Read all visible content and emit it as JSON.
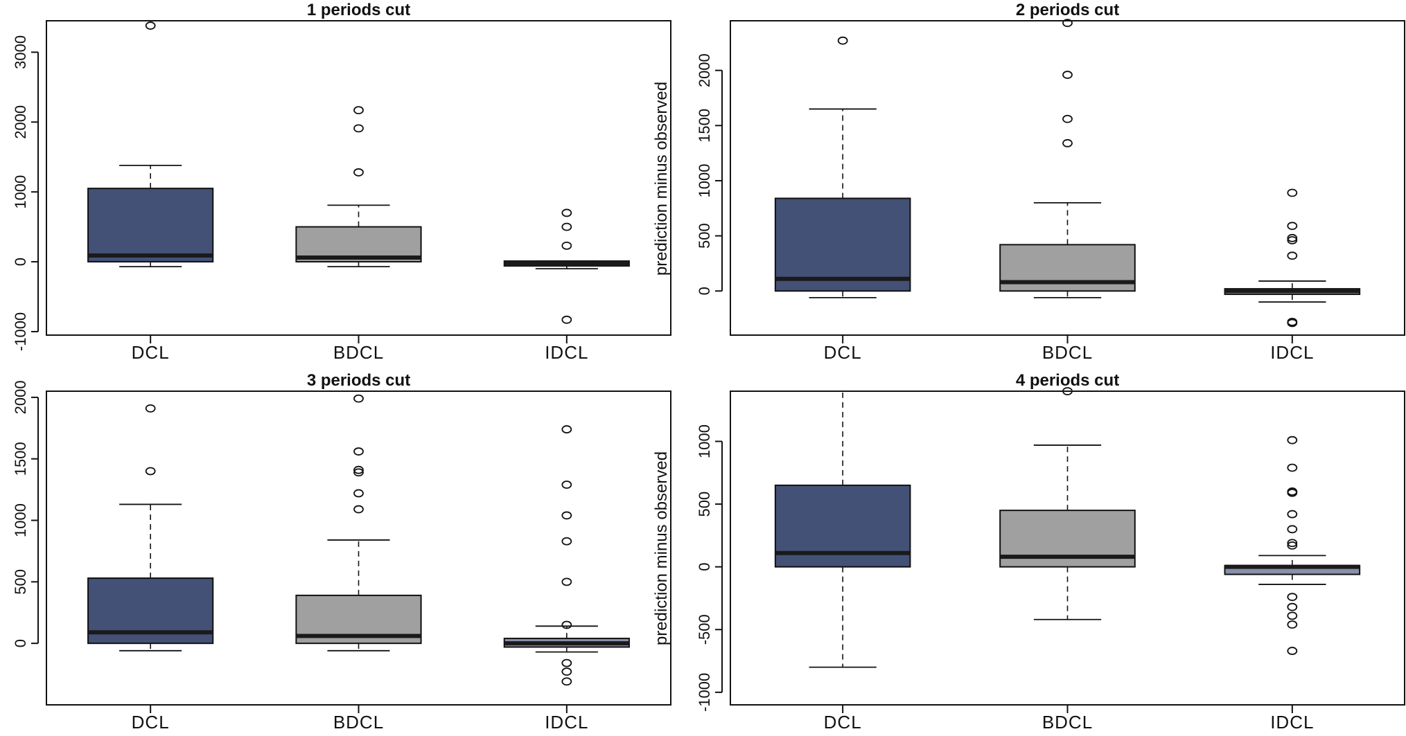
{
  "chart_data": [
    {
      "type": "box",
      "title": "1 periods cut",
      "ylabel": "",
      "categories": [
        "DCL",
        "BDCL",
        "IDCL"
      ],
      "ylim": [
        -1050,
        3450
      ],
      "yticks": [
        -1000,
        0,
        1000,
        2000,
        3000
      ],
      "ytick_labels": [
        "-1000",
        "0",
        "1000",
        "2000",
        "3000"
      ],
      "boxes": [
        {
          "name": "DCL",
          "color": "#435176",
          "whisker_low": -70,
          "q1": 0,
          "median": 90,
          "q3": 1050,
          "whisker_high": 1380,
          "outliers": [
            3380
          ]
        },
        {
          "name": "BDCL",
          "color": "#a0a0a0",
          "whisker_low": -70,
          "q1": 0,
          "median": 60,
          "q3": 500,
          "whisker_high": 810,
          "outliers": [
            1280,
            1910,
            2170
          ]
        },
        {
          "name": "IDCL",
          "color": "#8890aa",
          "whisker_low": -100,
          "q1": -60,
          "median": -20,
          "q3": 10,
          "whisker_high": 10,
          "outliers": [
            -830,
            230,
            500,
            700
          ]
        }
      ]
    },
    {
      "type": "box",
      "title": "2 periods cut",
      "ylabel": "prediction minus observed",
      "categories": [
        "DCL",
        "BDCL",
        "IDCL"
      ],
      "ylim": [
        -400,
        2450
      ],
      "yticks": [
        0,
        500,
        1000,
        1500,
        2000
      ],
      "ytick_labels": [
        "0",
        "500",
        "1000",
        "1500",
        "2000"
      ],
      "boxes": [
        {
          "name": "DCL",
          "color": "#435176",
          "whisker_low": -60,
          "q1": 0,
          "median": 110,
          "q3": 840,
          "whisker_high": 1650,
          "outliers": [
            2270
          ]
        },
        {
          "name": "BDCL",
          "color": "#a0a0a0",
          "whisker_low": -60,
          "q1": 0,
          "median": 80,
          "q3": 420,
          "whisker_high": 800,
          "outliers": [
            1340,
            1560,
            1960,
            2430
          ]
        },
        {
          "name": "IDCL",
          "color": "#8890aa",
          "whisker_low": -100,
          "q1": -30,
          "median": 0,
          "q3": 20,
          "whisker_high": 90,
          "outliers": [
            -280,
            -290,
            320,
            460,
            480,
            590,
            890
          ]
        }
      ]
    },
    {
      "type": "box",
      "title": "3 periods cut",
      "ylabel": "",
      "categories": [
        "DCL",
        "BDCL",
        "IDCL"
      ],
      "ylim": [
        -500,
        2050
      ],
      "yticks": [
        0,
        500,
        1000,
        1500,
        2000
      ],
      "ytick_labels": [
        "0",
        "500",
        "1000",
        "1500",
        "2000"
      ],
      "boxes": [
        {
          "name": "DCL",
          "color": "#435176",
          "whisker_low": -60,
          "q1": 0,
          "median": 90,
          "q3": 530,
          "whisker_high": 1130,
          "outliers": [
            1400,
            1910
          ]
        },
        {
          "name": "BDCL",
          "color": "#a0a0a0",
          "whisker_low": -60,
          "q1": 0,
          "median": 60,
          "q3": 390,
          "whisker_high": 840,
          "outliers": [
            1090,
            1220,
            1390,
            1410,
            1560,
            1990
          ]
        },
        {
          "name": "IDCL",
          "color": "#8890aa",
          "whisker_low": -70,
          "q1": -30,
          "median": 0,
          "q3": 40,
          "whisker_high": 140,
          "outliers": [
            -310,
            -230,
            -160,
            150,
            500,
            830,
            1040,
            1290,
            1740
          ]
        }
      ]
    },
    {
      "type": "box",
      "title": "4 periods cut",
      "ylabel": "prediction minus observed",
      "categories": [
        "DCL",
        "BDCL",
        "IDCL"
      ],
      "ylim": [
        -1100,
        1400
      ],
      "yticks": [
        -1000,
        -500,
        0,
        500,
        1000
      ],
      "ytick_labels": [
        "-1000",
        "-500",
        "0",
        "500",
        "1000"
      ],
      "boxes": [
        {
          "name": "DCL",
          "color": "#435176",
          "whisker_low": -800,
          "q1": 0,
          "median": 110,
          "q3": 650,
          "whisker_high": 1400,
          "outliers": []
        },
        {
          "name": "BDCL",
          "color": "#a0a0a0",
          "whisker_low": -420,
          "q1": 0,
          "median": 80,
          "q3": 450,
          "whisker_high": 970,
          "outliers": [
            1410
          ]
        },
        {
          "name": "IDCL",
          "color": "#8890aa",
          "whisker_low": -140,
          "q1": -60,
          "median": 0,
          "q3": 10,
          "whisker_high": 90,
          "outliers": [
            -670,
            -460,
            -390,
            -320,
            -240,
            170,
            190,
            300,
            420,
            590,
            600,
            790,
            1010
          ]
        }
      ]
    }
  ]
}
